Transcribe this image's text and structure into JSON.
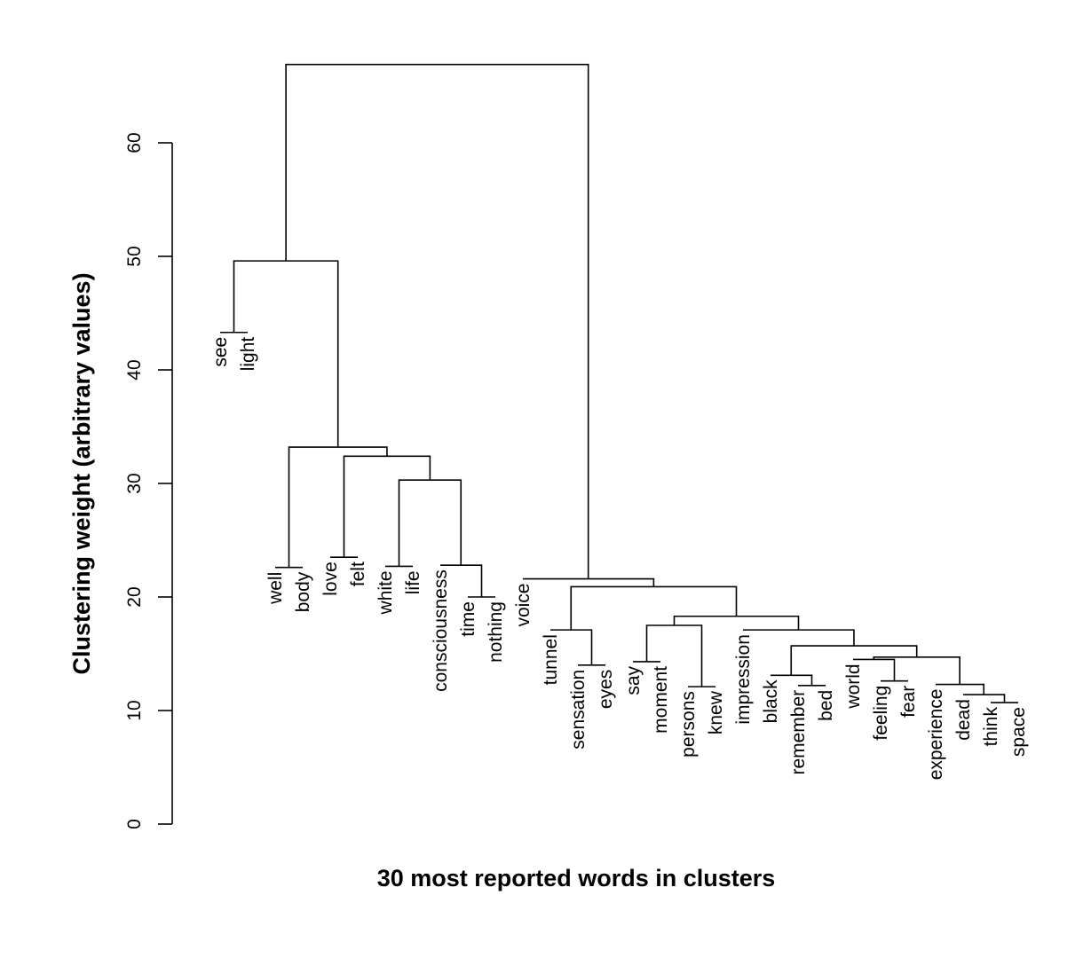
{
  "chart_data": {
    "type": "dendrogram",
    "xlabel": "30 most reported words in clusters",
    "ylabel": "Clustering weight (arbitrary values)",
    "ylim": [
      0,
      60
    ],
    "yticks": [
      0,
      10,
      20,
      30,
      40,
      50,
      60
    ],
    "leaves": [
      "see",
      "light",
      "well",
      "body",
      "love",
      "felt",
      "white",
      "life",
      "consciousness",
      "time",
      "nothing",
      "voice",
      "tunnel",
      "sensation",
      "eyes",
      "say",
      "moment",
      "persons",
      "knew",
      "impression",
      "black",
      "remember",
      "bed",
      "world",
      "feeling",
      "fear",
      "experience",
      "dead",
      "think",
      "space"
    ],
    "leaf_heights": [
      43.3,
      43.3,
      22.6,
      22.6,
      23.5,
      23.5,
      22.7,
      22.7,
      22.8,
      20.0,
      20.0,
      21.6,
      17.1,
      14.0,
      14.0,
      14.3,
      14.3,
      12.1,
      12.1,
      17.1,
      13.1,
      12.2,
      12.2,
      14.5,
      12.6,
      12.6,
      12.3,
      11.4,
      10.7,
      10.7
    ],
    "merges": [
      {
        "a": 0,
        "b": 1,
        "height": 43.3
      },
      {
        "a": 2,
        "b": 3,
        "height": 22.6
      },
      {
        "a": 4,
        "b": 5,
        "height": 23.5
      },
      {
        "a": 6,
        "b": 7,
        "height": 22.7
      },
      {
        "a": 9,
        "b": 10,
        "height": 20.0
      },
      {
        "a": 8,
        "b": "n5",
        "height": 22.8
      },
      {
        "a": "n4",
        "b": "n6",
        "height": 30.3
      },
      {
        "a": "n3",
        "b": "n7",
        "height": 32.4
      },
      {
        "a": "n2",
        "b": "n8",
        "height": 33.2
      },
      {
        "a": "n1",
        "b": "n9",
        "height": 49.6
      },
      {
        "a": 13,
        "b": 14,
        "height": 14.0
      },
      {
        "a": 12,
        "b": "n11",
        "height": 17.1
      },
      {
        "a": 15,
        "b": 16,
        "height": 14.3
      },
      {
        "a": 17,
        "b": 18,
        "height": 12.1
      },
      {
        "a": "n13",
        "b": "n14",
        "height": 17.5
      },
      {
        "a": 21,
        "b": 22,
        "height": 12.2
      },
      {
        "a": 20,
        "b": "n16",
        "height": 13.1
      },
      {
        "a": 24,
        "b": 25,
        "height": 12.6
      },
      {
        "a": 23,
        "b": "n18",
        "height": 14.5
      },
      {
        "a": 28,
        "b": 29,
        "height": 10.7
      },
      {
        "a": 27,
        "b": "n20",
        "height": 11.4
      },
      {
        "a": 26,
        "b": "n21",
        "height": 12.3
      },
      {
        "a": "n19",
        "b": "n22",
        "height": 14.7
      },
      {
        "a": "n17",
        "b": "n23",
        "height": 15.7
      },
      {
        "a": 19,
        "b": "n24",
        "height": 17.1
      },
      {
        "a": "n15",
        "b": "n25",
        "height": 18.3
      },
      {
        "a": "n12",
        "b": "n26",
        "height": 20.9
      },
      {
        "a": 11,
        "b": "n27",
        "height": 21.6
      },
      {
        "a": "n10",
        "b": "n28",
        "height": 66.9
      }
    ]
  }
}
